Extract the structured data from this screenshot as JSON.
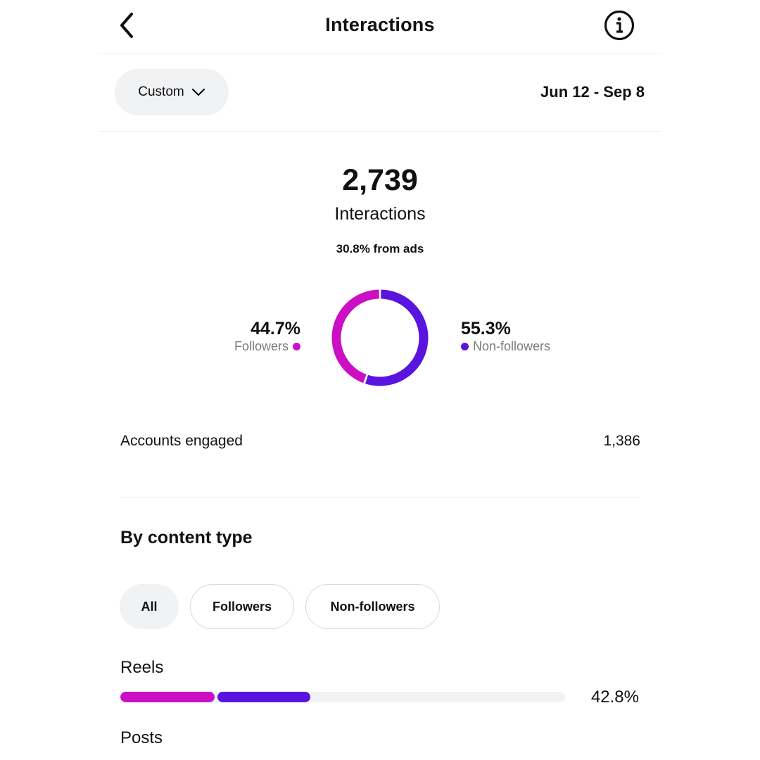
{
  "header": {
    "title": "Interactions"
  },
  "filter": {
    "range_label": "Custom",
    "date_range": "Jun 12 - Sep 8"
  },
  "summary": {
    "total": "2,739",
    "total_label": "Interactions",
    "ads_note": "30.8% from ads"
  },
  "breakdown": {
    "followers": {
      "pct_text": "44.7%",
      "label": "Followers",
      "fraction": 0.447,
      "color": "#cc0fc4"
    },
    "non_followers": {
      "pct_text": "55.3%",
      "label": "Non-followers",
      "fraction": 0.553,
      "color": "#5a14e0"
    }
  },
  "accounts_engaged": {
    "label": "Accounts engaged",
    "value": "1,386"
  },
  "content_type": {
    "title": "By content type",
    "chips": [
      {
        "label": "All",
        "selected": true
      },
      {
        "label": "Followers",
        "selected": false
      },
      {
        "label": "Non-followers",
        "selected": false
      }
    ],
    "rows": [
      {
        "label": "Reels",
        "pct_text": "42.8%",
        "share": 0.428,
        "followers_share": 0.215,
        "non_followers_share": 0.213
      },
      {
        "label": "Posts"
      }
    ]
  },
  "icons": {
    "back": "chevron-left-icon",
    "info": "info-circle-icon",
    "dropdown": "chevron-down-icon"
  },
  "colors": {
    "followers": "#cc0fc4",
    "non_followers": "#5a14e0",
    "track": "#f1f2f4"
  }
}
